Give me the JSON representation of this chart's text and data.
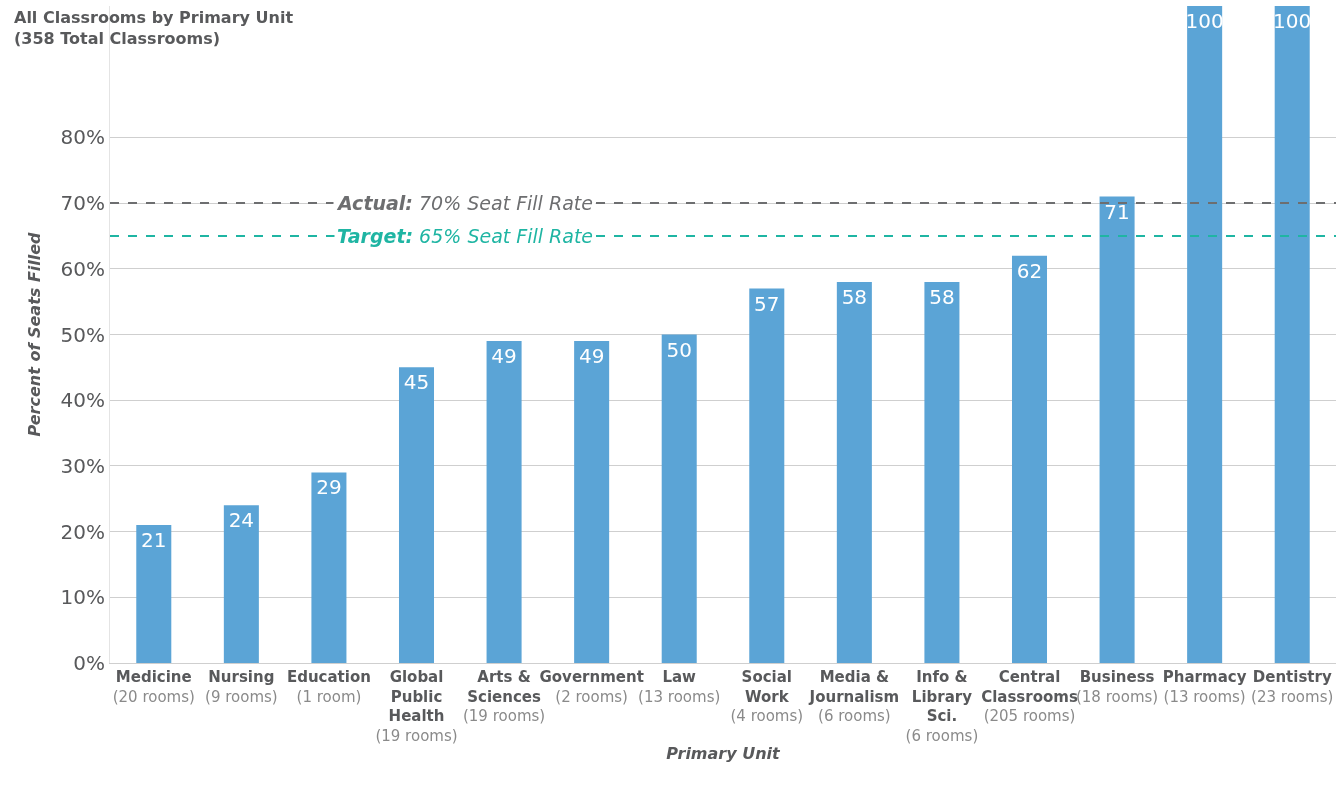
{
  "chart_data": {
    "type": "bar",
    "title": "All Classrooms by Primary Unit\n(358 Total Classrooms)",
    "xlabel": "Primary Unit",
    "ylabel": "Percent of Seats Filled",
    "categories": [
      "Medicine\n(20 rooms)",
      "Nursing\n(9 rooms)",
      "Education\n(1 room)",
      "Global\nPublic\nHealth\n(19 rooms)",
      "Arts &\nSciences\n(19 rooms)",
      "Government\n(2 rooms)",
      "Law\n(13 rooms)",
      "Social\nWork\n(4 rooms)",
      "Media &\nJournalism\n(6 rooms)",
      "Info &\nLibrary\nSci.\n(6 rooms)",
      "Central\nClassrooms\n(205 rooms)",
      "Business\n(18 rooms)",
      "Pharmacy\n(13 rooms)",
      "Dentistry\n(23 rooms)"
    ],
    "values": [
      21,
      24,
      29,
      45,
      49,
      49,
      50,
      57,
      58,
      58,
      62,
      71,
      100,
      100
    ],
    "color": "#5ba4d6",
    "data_labels": true,
    "ylim": [
      0,
      100
    ],
    "yticks": [
      {
        "value": 0,
        "label": "0%"
      },
      {
        "value": 10,
        "label": "10%"
      },
      {
        "value": 20,
        "label": "20%"
      },
      {
        "value": 30,
        "label": "30%"
      },
      {
        "value": 40,
        "label": "40%"
      },
      {
        "value": 50,
        "label": "50%"
      },
      {
        "value": 60,
        "label": "60%"
      },
      {
        "value": 70,
        "label": "70%"
      },
      {
        "value": 80,
        "label": "80%"
      }
    ],
    "grid": "y",
    "ref_lines": [
      {
        "axis": "y",
        "value": 70,
        "label": "Actual: 70% Seat Fill Rate",
        "color": "#6d6e70",
        "line_style": "dashed"
      },
      {
        "axis": "y",
        "value": 65,
        "label": "Target: 65% Seat Fill Rate",
        "color": "#1fb5a3",
        "line_style": "dashed"
      }
    ]
  }
}
